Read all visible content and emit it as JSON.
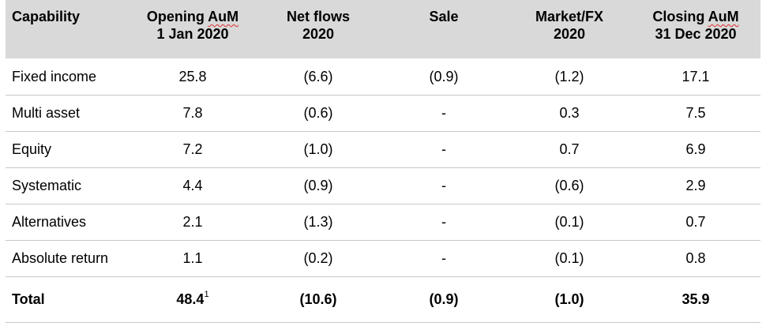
{
  "table": {
    "headers": [
      {
        "line1": "Capability",
        "line2": ""
      },
      {
        "line1_a": "Opening ",
        "line1_b": "AuM",
        "line2": "1 Jan 2020"
      },
      {
        "line1": "Net flows",
        "line2": "2020"
      },
      {
        "line1": "Sale",
        "line2": ""
      },
      {
        "line1": "Market/FX",
        "line2": "2020"
      },
      {
        "line1_a": "Closing ",
        "line1_b": "AuM",
        "line2": "31 Dec 2020"
      }
    ],
    "rows": [
      {
        "cells": [
          "Fixed income",
          "25.8",
          "(6.6)",
          "(0.9)",
          "(1.2)",
          "17.1"
        ]
      },
      {
        "cells": [
          "Multi asset",
          "7.8",
          "(0.6)",
          "-",
          "0.3",
          "7.5"
        ]
      },
      {
        "cells": [
          "Equity",
          "7.2",
          "(1.0)",
          "-",
          "0.7",
          "6.9"
        ]
      },
      {
        "cells": [
          "Systematic",
          "4.4",
          "(0.9)",
          "-",
          "(0.6)",
          "2.9"
        ]
      },
      {
        "cells": [
          "Alternatives",
          "2.1",
          "(1.3)",
          "-",
          "(0.1)",
          "0.7"
        ]
      },
      {
        "cells": [
          "Absolute return",
          "1.1",
          "(0.2)",
          "-",
          "(0.1)",
          "0.8"
        ]
      }
    ],
    "total": {
      "label": "Total",
      "opening": "48.4",
      "opening_footnote": "1",
      "net_flows": "(10.6)",
      "sale": "(0.9)",
      "market_fx": "(1.0)",
      "closing": "35.9"
    }
  }
}
